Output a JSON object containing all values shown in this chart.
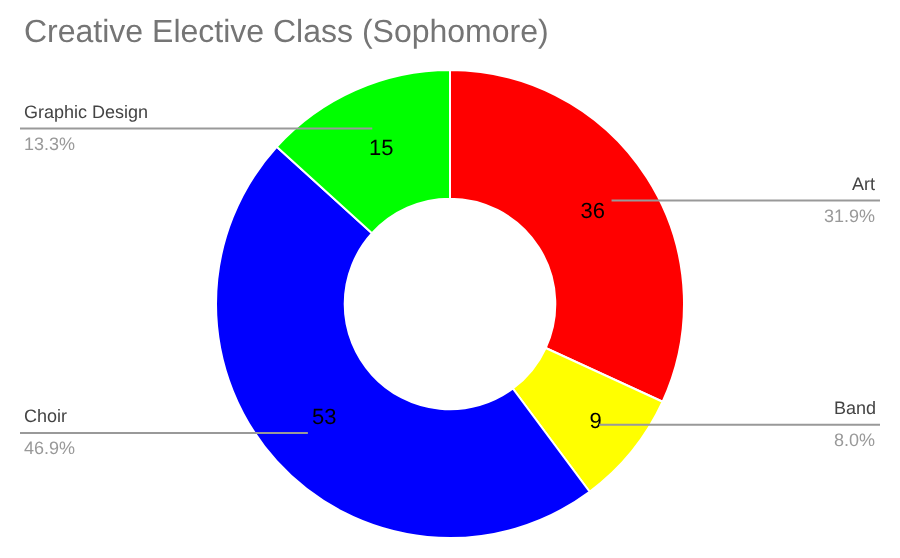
{
  "chart_data": {
    "type": "donut",
    "title": "Creative Elective Class (Sophomore)",
    "categories": [
      "Art",
      "Band",
      "Choir",
      "Graphic Design"
    ],
    "values": [
      36,
      9,
      53,
      15
    ],
    "colors": [
      "#ff0000",
      "#ffff00",
      "#0000ff",
      "#00ff00"
    ],
    "value_labels": [
      "36",
      "9",
      "53",
      "15"
    ],
    "annotations": [
      "31.9%",
      "8.0%",
      "46.9%",
      "13.3%"
    ],
    "legend": false
  }
}
